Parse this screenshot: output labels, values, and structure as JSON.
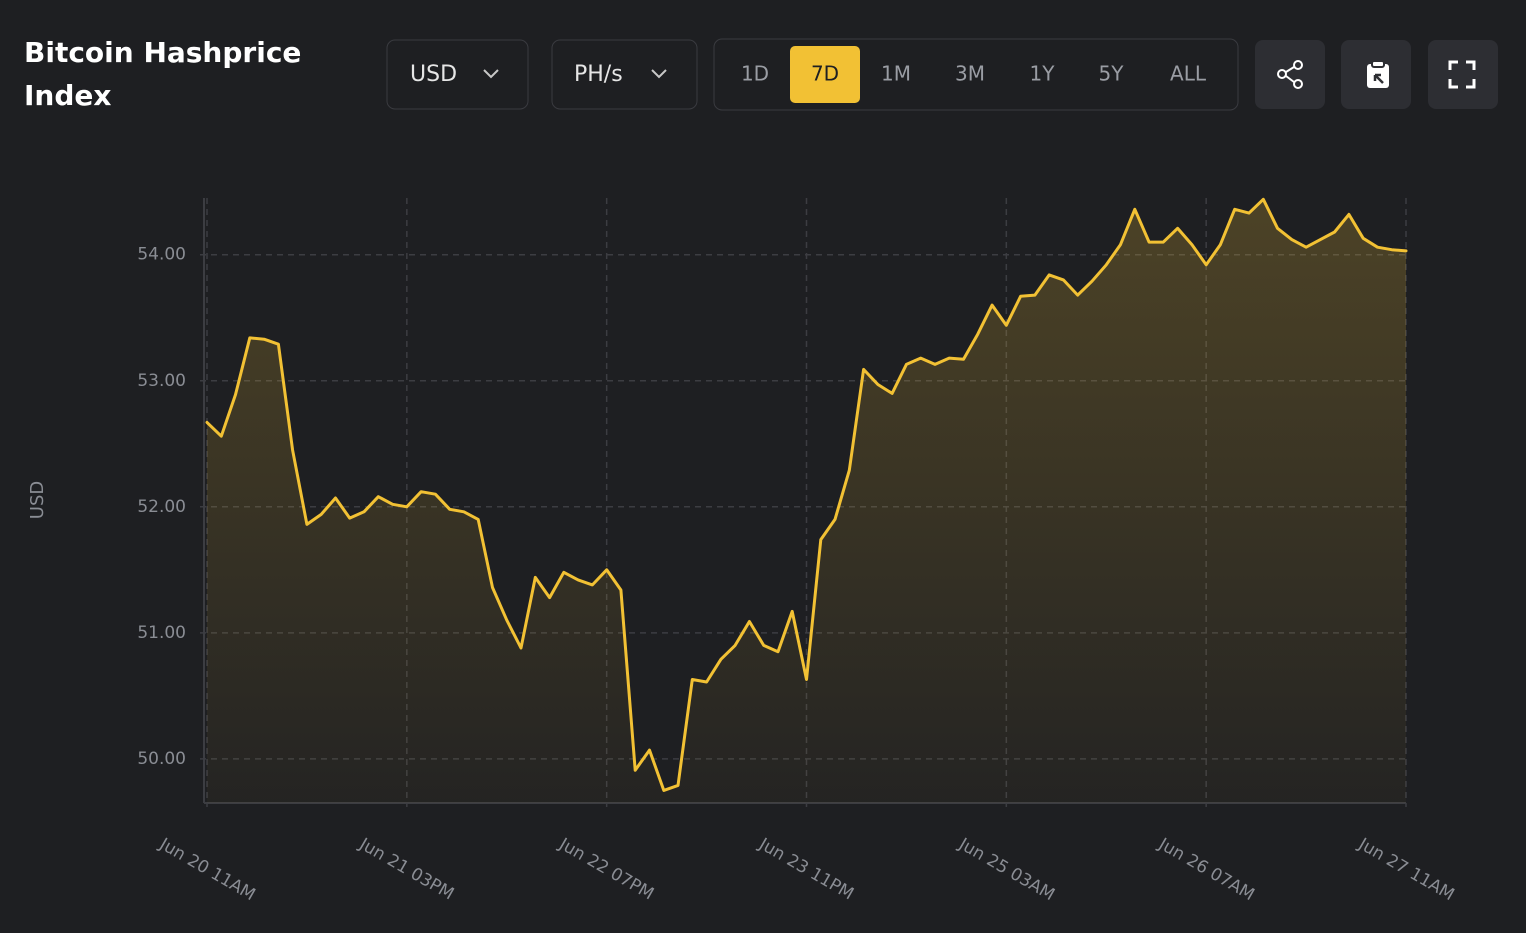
{
  "header": {
    "title": "Bitcoin Hashprice Index"
  },
  "controls": {
    "currency": "USD",
    "unit": "PH/s",
    "ranges": [
      "1D",
      "7D",
      "1M",
      "3M",
      "1Y",
      "5Y",
      "ALL"
    ],
    "active_range": "7D"
  },
  "chart_data": {
    "type": "line",
    "ylabel": "USD",
    "categories": [
      "Jun 20 11AM",
      null,
      null,
      null,
      null,
      null,
      null,
      null,
      null,
      null,
      null,
      null,
      null,
      null,
      "Jun 21 03PM",
      null,
      null,
      null,
      null,
      null,
      null,
      null,
      null,
      null,
      null,
      null,
      null,
      null,
      "Jun 22 07PM",
      null,
      null,
      null,
      null,
      null,
      null,
      null,
      null,
      null,
      null,
      null,
      null,
      null,
      "Jun 23 11PM",
      null,
      null,
      null,
      null,
      null,
      null,
      null,
      null,
      null,
      null,
      null,
      null,
      null,
      "Jun 25 03AM",
      null,
      null,
      null,
      null,
      null,
      null,
      null,
      null,
      null,
      null,
      null,
      null,
      null,
      "Jun 26 07AM",
      null,
      null,
      null,
      null,
      null,
      null,
      null,
      null,
      null,
      null,
      null,
      null,
      null,
      "Jun 27 11AM"
    ],
    "series": [
      {
        "name": "USD",
        "color": "#f2c134",
        "values": [
          52.67,
          52.56,
          52.89,
          53.34,
          53.33,
          53.29,
          52.45,
          51.86,
          51.94,
          52.07,
          51.91,
          51.96,
          52.08,
          52.02,
          52.0,
          52.12,
          52.1,
          51.98,
          51.96,
          51.9,
          51.36,
          51.1,
          50.88,
          51.44,
          51.28,
          51.48,
          51.42,
          51.38,
          51.5,
          51.34,
          49.91,
          50.07,
          49.75,
          49.79,
          50.63,
          50.61,
          50.79,
          50.9,
          51.09,
          50.9,
          50.85,
          51.17,
          50.63,
          51.74,
          51.9,
          52.29,
          53.09,
          52.97,
          52.9,
          53.13,
          53.18,
          53.13,
          53.18,
          53.17,
          53.37,
          53.6,
          53.44,
          53.67,
          53.68,
          53.84,
          53.8,
          53.68,
          53.79,
          53.92,
          54.08,
          54.36,
          54.1,
          54.1,
          54.21,
          54.08,
          53.92,
          54.08,
          54.36,
          54.33,
          54.44,
          54.21,
          54.12,
          54.06,
          54.12,
          54.18,
          54.32,
          54.13,
          54.06,
          54.04,
          54.03
        ]
      }
    ],
    "ylim": [
      49.65,
      54.45
    ],
    "yticks": [
      {
        "value": 50,
        "label": "50.00"
      },
      {
        "value": 51,
        "label": "51.00"
      },
      {
        "value": 52,
        "label": "52.00"
      },
      {
        "value": 53,
        "label": "53.00"
      },
      {
        "value": 54,
        "label": "54.00"
      }
    ],
    "grid": true
  }
}
